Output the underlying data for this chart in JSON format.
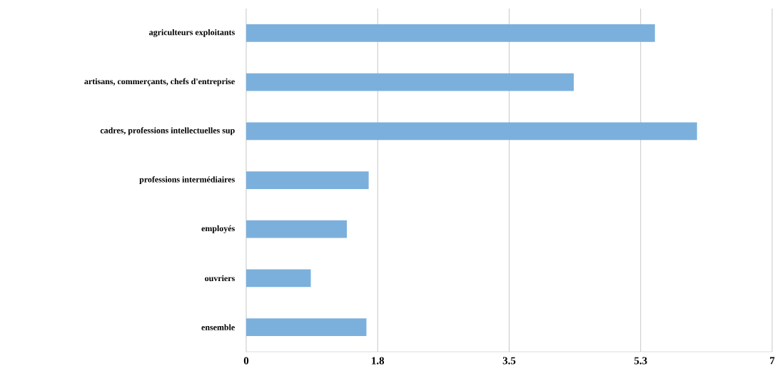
{
  "chart_data": {
    "type": "bar",
    "orientation": "horizontal",
    "categories": [
      "agriculteurs exploitants",
      "artisans, commerçants, chefs d'entreprise",
      "cadres, professions intellectuelles sup",
      "professions intermédiaires",
      "employés",
      "ouvriers",
      "ensemble"
    ],
    "values": [
      5.44,
      4.36,
      6.0,
      1.63,
      1.34,
      0.86,
      1.6
    ],
    "color": "#7cb0dc",
    "xlim": [
      0,
      7
    ],
    "xticks": [
      0,
      {
        "value": 1.75,
        "label": "1.8"
      },
      3.5,
      {
        "value": 5.25,
        "label": "5.3"
      },
      7
    ],
    "grid": "x"
  }
}
